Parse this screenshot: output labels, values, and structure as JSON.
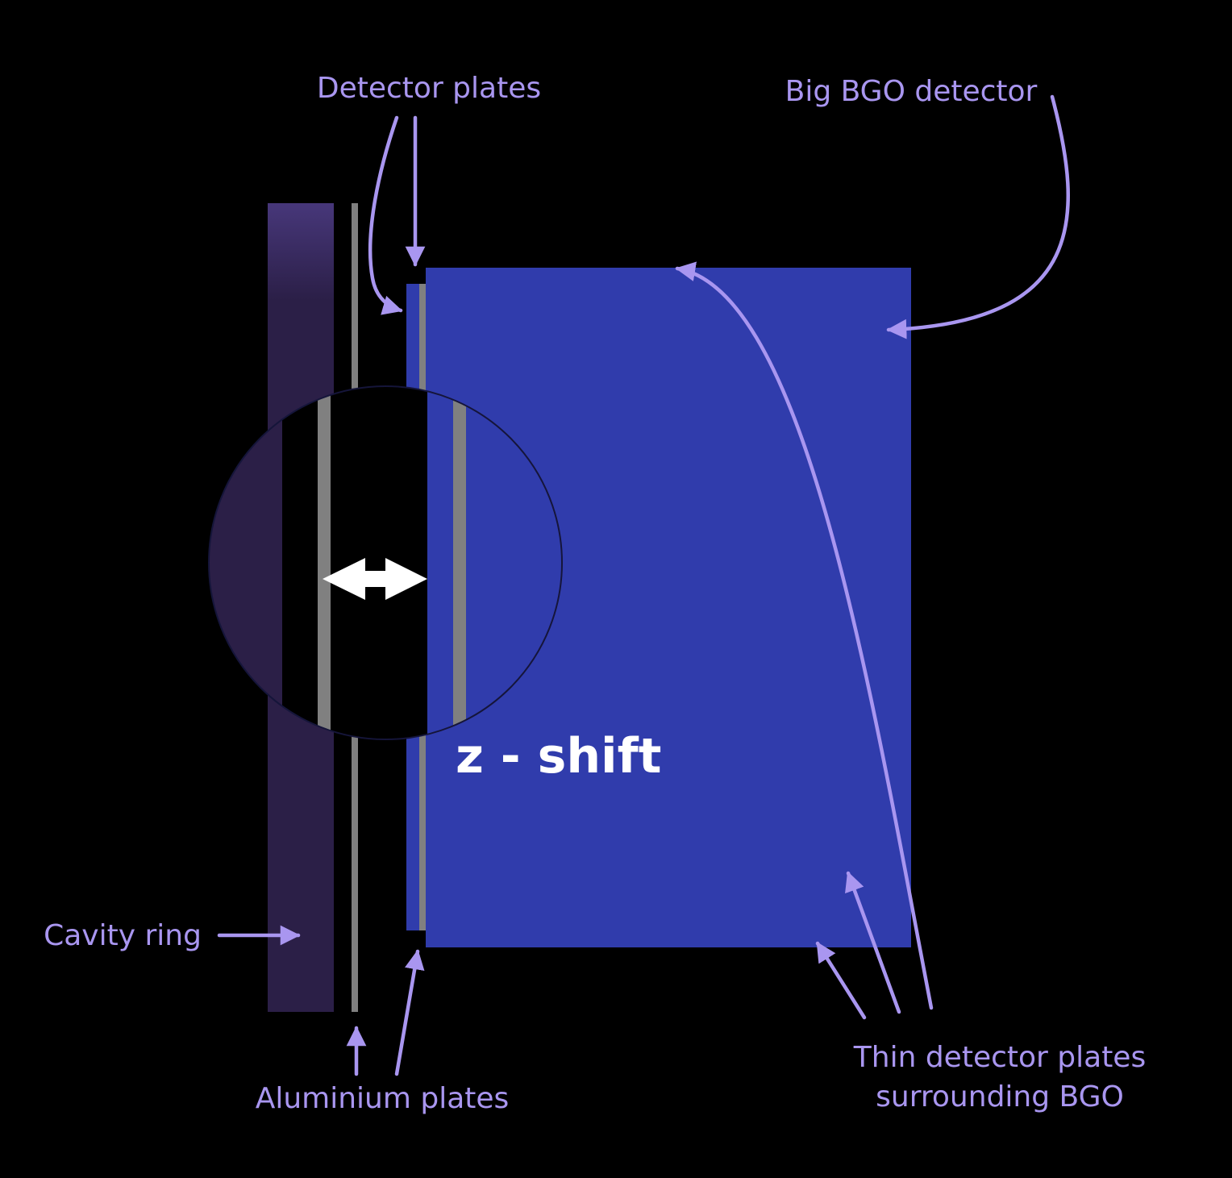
{
  "labels": {
    "detector_plates": "Detector plates",
    "big_bgo": "Big BGO detector",
    "cavity_ring": "Cavity ring",
    "aluminium_plates": "Aluminium plates",
    "thin_plates_line1": "Thin detector plates",
    "thin_plates_line2": "surrounding BGO",
    "z_shift": "z - shift"
  },
  "colors": {
    "background": "#000000",
    "bgo_detector": "#303cac",
    "cavity_ring": "#2b1f47",
    "cavity_ring_top": "#47377a",
    "aluminium_plate": "#808080",
    "label": "#a996f0",
    "z_shift_text": "#ffffff"
  }
}
